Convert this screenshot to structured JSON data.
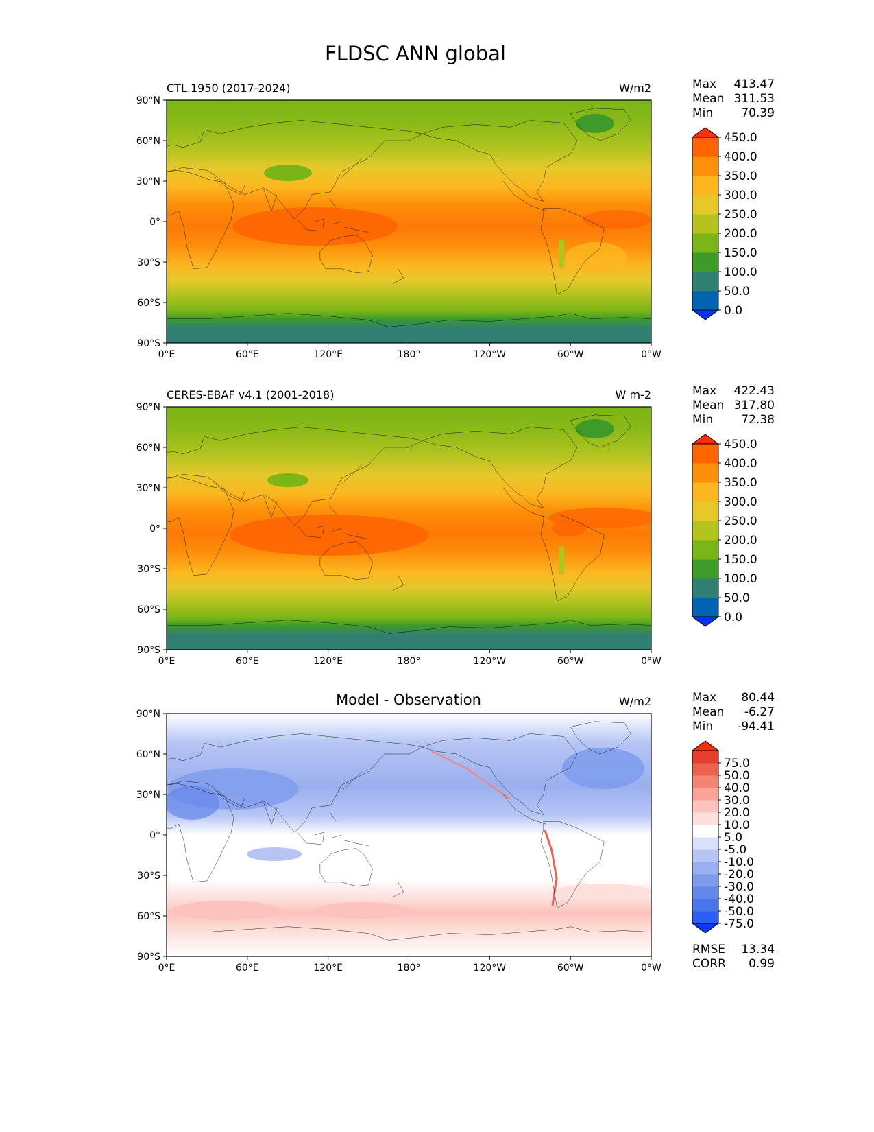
{
  "page": {
    "title": "FLDSC ANN global"
  },
  "panels": [
    {
      "name": "test",
      "left_title": "CTL.1950 (2017-2024)",
      "center_title": "",
      "units": "W/m2",
      "stats": [
        {
          "label": "Max",
          "value": "413.47"
        },
        {
          "label": "Mean",
          "value": "311.53"
        },
        {
          "label": "Min",
          "value": "70.39"
        }
      ]
    },
    {
      "name": "reference",
      "left_title": "CERES-EBAF v4.1 (2001-2018)",
      "center_title": "",
      "units": "W m-2",
      "stats": [
        {
          "label": "Max",
          "value": "422.43"
        },
        {
          "label": "Mean",
          "value": "317.80"
        },
        {
          "label": "Min",
          "value": "72.38"
        }
      ]
    },
    {
      "name": "difference",
      "left_title": "",
      "center_title": "Model - Observation",
      "units": "W/m2",
      "stats": [
        {
          "label": "Max",
          "value": "80.44"
        },
        {
          "label": "Mean",
          "value": "-6.27"
        },
        {
          "label": "Min",
          "value": "-94.41"
        }
      ],
      "footer_stats": [
        {
          "label": "RMSE",
          "value": "13.34"
        },
        {
          "label": "CORR",
          "value": "0.99"
        }
      ]
    }
  ],
  "colorbars": {
    "main": {
      "levels": [
        "0.0",
        "50.0",
        "100.0",
        "150.0",
        "200.0",
        "250.0",
        "300.0",
        "350.0",
        "400.0",
        "450.0"
      ],
      "colors": [
        "#0032ff",
        "#0064b4",
        "#2f7f73",
        "#3e9b29",
        "#7ab417",
        "#b3c41f",
        "#e6c82a",
        "#fcb620",
        "#fd8e09",
        "#fe6402",
        "#ff3010"
      ]
    },
    "diff": {
      "levels": [
        "-75.0",
        "-50.0",
        "-40.0",
        "-30.0",
        "-20.0",
        "-10.0",
        "-5.0",
        "5.0",
        "10.0",
        "20.0",
        "30.0",
        "40.0",
        "50.0",
        "75.0"
      ],
      "colors": [
        "#0a3cff",
        "#2e5ff5",
        "#4a74ee",
        "#6487ea",
        "#7e9bec",
        "#9aafef",
        "#b6c5f4",
        "#d8e1f9",
        "#ffffff",
        "#fde0dc",
        "#fbc3bb",
        "#f8a497",
        "#f38474",
        "#ed6150",
        "#e73d2c",
        "#ff2a0a"
      ]
    }
  },
  "chart_data": [
    {
      "type": "heatmap",
      "title": "CTL.1950 (2017-2024)",
      "units": "W/m2",
      "x_ticks": [
        "0°E",
        "60°E",
        "120°E",
        "180°",
        "120°W",
        "60°W",
        "0°W"
      ],
      "y_ticks": [
        "90°N",
        "60°N",
        "30°N",
        "0°",
        "30°S",
        "60°S",
        "90°S"
      ],
      "xlim": [
        0,
        360
      ],
      "ylim": [
        -90,
        90
      ],
      "zonal_mean_by_lat": [
        {
          "lat": 85,
          "value": 210
        },
        {
          "lat": 70,
          "value": 215
        },
        {
          "lat": 55,
          "value": 250
        },
        {
          "lat": 45,
          "value": 285
        },
        {
          "lat": 35,
          "value": 320
        },
        {
          "lat": 25,
          "value": 355
        },
        {
          "lat": 15,
          "value": 385
        },
        {
          "lat": 5,
          "value": 405
        },
        {
          "lat": -5,
          "value": 395
        },
        {
          "lat": -15,
          "value": 375
        },
        {
          "lat": -25,
          "value": 345
        },
        {
          "lat": -35,
          "value": 310
        },
        {
          "lat": -45,
          "value": 275
        },
        {
          "lat": -55,
          "value": 240
        },
        {
          "lat": -65,
          "value": 215
        },
        {
          "lat": -72,
          "value": 160
        },
        {
          "lat": -82,
          "value": 110
        }
      ],
      "stats": {
        "max": 413.47,
        "mean": 311.53,
        "min": 70.39
      }
    },
    {
      "type": "heatmap",
      "title": "CERES-EBAF v4.1 (2001-2018)",
      "units": "W m-2",
      "x_ticks": [
        "0°E",
        "60°E",
        "120°E",
        "180°",
        "120°W",
        "60°W",
        "0°W"
      ],
      "y_ticks": [
        "90°N",
        "60°N",
        "30°N",
        "0°",
        "30°S",
        "60°S",
        "90°S"
      ],
      "xlim": [
        0,
        360
      ],
      "ylim": [
        -90,
        90
      ],
      "zonal_mean_by_lat": [
        {
          "lat": 85,
          "value": 210
        },
        {
          "lat": 70,
          "value": 220
        },
        {
          "lat": 55,
          "value": 255
        },
        {
          "lat": 45,
          "value": 290
        },
        {
          "lat": 35,
          "value": 325
        },
        {
          "lat": 25,
          "value": 360
        },
        {
          "lat": 15,
          "value": 390
        },
        {
          "lat": 5,
          "value": 410
        },
        {
          "lat": -5,
          "value": 400
        },
        {
          "lat": -15,
          "value": 380
        },
        {
          "lat": -25,
          "value": 350
        },
        {
          "lat": -35,
          "value": 315
        },
        {
          "lat": -45,
          "value": 280
        },
        {
          "lat": -55,
          "value": 245
        },
        {
          "lat": -65,
          "value": 220
        },
        {
          "lat": -72,
          "value": 160
        },
        {
          "lat": -82,
          "value": 110
        }
      ],
      "stats": {
        "max": 422.43,
        "mean": 317.8,
        "min": 72.38
      }
    },
    {
      "type": "heatmap",
      "title": "Model - Observation",
      "units": "W/m2",
      "x_ticks": [
        "0°E",
        "60°E",
        "120°E",
        "180°",
        "120°W",
        "60°W",
        "0°W"
      ],
      "y_ticks": [
        "90°N",
        "60°N",
        "30°N",
        "0°",
        "30°S",
        "60°S",
        "90°S"
      ],
      "xlim": [
        0,
        360
      ],
      "ylim": [
        -90,
        90
      ],
      "zonal_mean_by_lat": [
        {
          "lat": 80,
          "value": -5
        },
        {
          "lat": 65,
          "value": -12
        },
        {
          "lat": 50,
          "value": -15
        },
        {
          "lat": 35,
          "value": -15
        },
        {
          "lat": 20,
          "value": -8
        },
        {
          "lat": 5,
          "value": 0
        },
        {
          "lat": -10,
          "value": 2
        },
        {
          "lat": -25,
          "value": 4
        },
        {
          "lat": -45,
          "value": 10
        },
        {
          "lat": -60,
          "value": 6
        },
        {
          "lat": -75,
          "value": 3
        }
      ],
      "stats": {
        "max": 80.44,
        "mean": -6.27,
        "min": -94.41,
        "rmse": 13.34,
        "corr": 0.99
      }
    }
  ]
}
